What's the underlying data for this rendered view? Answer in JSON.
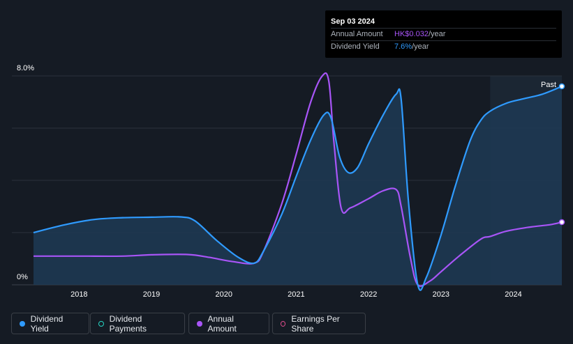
{
  "tooltip": {
    "date": "Sep 03 2024",
    "annual_amount_label": "Annual Amount",
    "annual_amount_value": "HK$0.032",
    "annual_amount_unit": "/year",
    "dividend_yield_label": "Dividend Yield",
    "dividend_yield_value": "7.6%",
    "dividend_yield_unit": "/year"
  },
  "legend": {
    "dividend_yield": "Dividend Yield",
    "dividend_payments": "Dividend Payments",
    "annual_amount": "Annual Amount",
    "earnings_per_share": "Earnings Per Share"
  },
  "chart_data": {
    "type": "line",
    "ylabel_top": "8.0%",
    "ylabel_bottom": "0%",
    "ylim": [
      0,
      8.0
    ],
    "xlim": [
      2017.37,
      2024.67
    ],
    "x_ticks": [
      2018,
      2019,
      2020,
      2021,
      2022,
      2023,
      2024
    ],
    "x_tick_labels": [
      "2018",
      "2019",
      "2020",
      "2021",
      "2022",
      "2023",
      "2024"
    ],
    "past_label": "Past",
    "past_region_start": 2023.68,
    "grid": true,
    "colors": {
      "dividend_yield": "#2f9bff",
      "annual_amount": "#a855f7",
      "dividend_payments": "#26d6c4",
      "earnings_per_share": "#e24d8e",
      "area_fill": "#1d3a55"
    },
    "series": [
      {
        "name": "Dividend Yield",
        "unit": "%",
        "points": [
          [
            2017.37,
            2.0
          ],
          [
            2017.8,
            2.3
          ],
          [
            2018.2,
            2.5
          ],
          [
            2018.6,
            2.57
          ],
          [
            2019.0,
            2.59
          ],
          [
            2019.4,
            2.6
          ],
          [
            2019.6,
            2.45
          ],
          [
            2019.9,
            1.7
          ],
          [
            2020.2,
            1.05
          ],
          [
            2020.42,
            0.83
          ],
          [
            2020.55,
            1.3
          ],
          [
            2020.8,
            2.7
          ],
          [
            2021.0,
            4.15
          ],
          [
            2021.2,
            5.55
          ],
          [
            2021.38,
            6.5
          ],
          [
            2021.48,
            6.4
          ],
          [
            2021.6,
            4.9
          ],
          [
            2021.72,
            4.3
          ],
          [
            2021.85,
            4.5
          ],
          [
            2022.0,
            5.4
          ],
          [
            2022.2,
            6.5
          ],
          [
            2022.38,
            7.3
          ],
          [
            2022.45,
            7.1
          ],
          [
            2022.55,
            3.2
          ],
          [
            2022.68,
            0.0
          ],
          [
            2022.8,
            0.3
          ],
          [
            2023.0,
            1.9
          ],
          [
            2023.2,
            3.8
          ],
          [
            2023.4,
            5.5
          ],
          [
            2023.55,
            6.3
          ],
          [
            2023.68,
            6.65
          ],
          [
            2023.9,
            6.95
          ],
          [
            2024.1,
            7.1
          ],
          [
            2024.4,
            7.3
          ],
          [
            2024.67,
            7.6
          ]
        ]
      },
      {
        "name": "Annual Amount",
        "unit": "HK$",
        "points": [
          [
            2017.37,
            1.1
          ],
          [
            2018.0,
            1.1
          ],
          [
            2018.6,
            1.1
          ],
          [
            2019.0,
            1.15
          ],
          [
            2019.5,
            1.16
          ],
          [
            2019.8,
            1.05
          ],
          [
            2020.1,
            0.9
          ],
          [
            2020.42,
            0.83
          ],
          [
            2020.55,
            1.3
          ],
          [
            2020.8,
            3.1
          ],
          [
            2021.0,
            5.0
          ],
          [
            2021.2,
            7.0
          ],
          [
            2021.36,
            8.0
          ],
          [
            2021.45,
            7.8
          ],
          [
            2021.52,
            5.5
          ],
          [
            2021.62,
            2.95
          ],
          [
            2021.75,
            2.95
          ],
          [
            2022.0,
            3.3
          ],
          [
            2022.2,
            3.6
          ],
          [
            2022.38,
            3.65
          ],
          [
            2022.45,
            3.0
          ],
          [
            2022.58,
            1.0
          ],
          [
            2022.68,
            0.0
          ],
          [
            2022.85,
            0.15
          ],
          [
            2023.0,
            0.5
          ],
          [
            2023.25,
            1.1
          ],
          [
            2023.55,
            1.75
          ],
          [
            2023.68,
            1.85
          ],
          [
            2023.9,
            2.05
          ],
          [
            2024.2,
            2.2
          ],
          [
            2024.5,
            2.3
          ],
          [
            2024.67,
            2.4
          ]
        ]
      }
    ]
  }
}
